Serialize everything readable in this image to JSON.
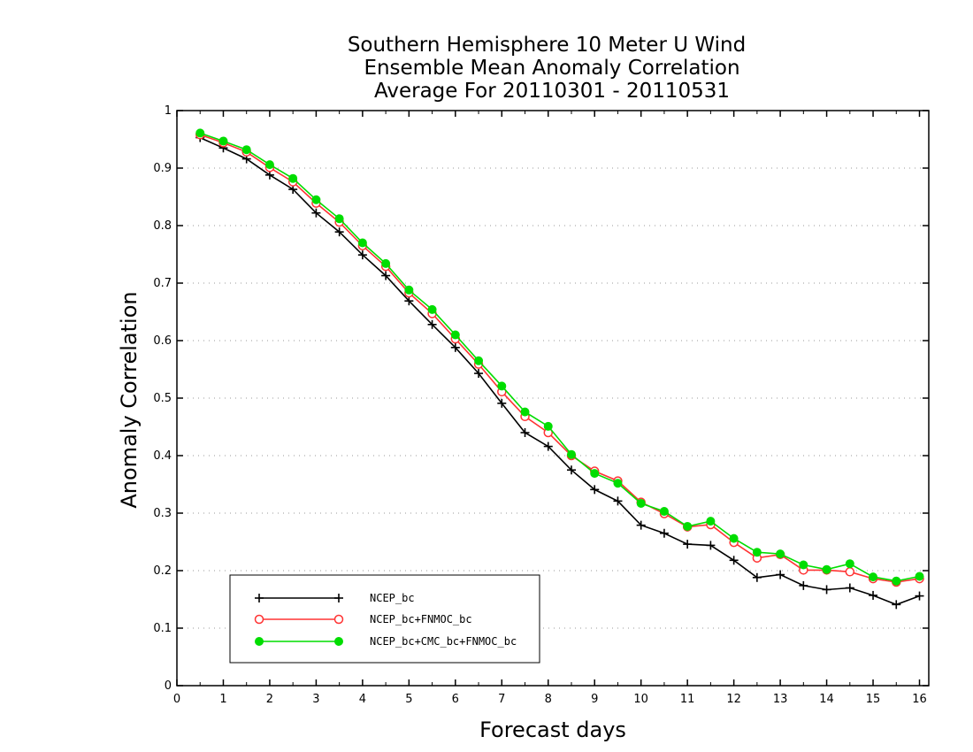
{
  "chart_data": {
    "type": "line",
    "title_lines": [
      "Southern Hemisphere 10 Meter U Wind",
      "Ensemble Mean Anomaly Correlation",
      "Average For 20110301 - 20110531"
    ],
    "xlabel": "Forecast days",
    "ylabel": "Anomaly Correlation",
    "xlim": [
      0,
      16.2
    ],
    "ylim": [
      0,
      1
    ],
    "xticks": [
      "0",
      "1",
      "2",
      "3",
      "4",
      "5",
      "6",
      "7",
      "8",
      "9",
      "10",
      "11",
      "12",
      "13",
      "14",
      "15",
      "16"
    ],
    "yticks": [
      "0",
      "0.1",
      "0.2",
      "0.3",
      "0.4",
      "0.5",
      "0.6",
      "0.7",
      "0.8",
      "0.9",
      "1"
    ],
    "grid": "horizontal-dotted",
    "legend_position": "bottom-left",
    "x": [
      0.5,
      1,
      1.5,
      2,
      2.5,
      3,
      3.5,
      4,
      4.5,
      5,
      5.5,
      6,
      6.5,
      7,
      7.5,
      8,
      8.5,
      9,
      9.5,
      10,
      10.5,
      11,
      11.5,
      12,
      12.5,
      13,
      13.5,
      14,
      14.5,
      15,
      15.5,
      16
    ],
    "series": [
      {
        "name": "NCEP_bc",
        "color": "#000000",
        "marker": "plus",
        "values": [
          0.953,
          0.935,
          0.916,
          0.888,
          0.863,
          0.822,
          0.789,
          0.749,
          0.713,
          0.669,
          0.628,
          0.588,
          0.543,
          0.491,
          0.44,
          0.416,
          0.375,
          0.341,
          0.321,
          0.279,
          0.265,
          0.246,
          0.244,
          0.218,
          0.188,
          0.193,
          0.174,
          0.167,
          0.17,
          0.157,
          0.141,
          0.156
        ]
      },
      {
        "name": "NCEP_bc+FNMOC_bc",
        "color": "#ff3333",
        "marker": "open-circle",
        "values": [
          0.958,
          0.944,
          0.928,
          0.901,
          0.876,
          0.839,
          0.806,
          0.765,
          0.729,
          0.683,
          0.647,
          0.603,
          0.559,
          0.511,
          0.468,
          0.44,
          0.4,
          0.373,
          0.356,
          0.319,
          0.299,
          0.276,
          0.28,
          0.249,
          0.222,
          0.228,
          0.201,
          0.201,
          0.198,
          0.186,
          0.18,
          0.186
        ]
      },
      {
        "name": "NCEP_bc+CMC_bc+FNMOC_bc",
        "color": "#00dd00",
        "marker": "filled-circle",
        "values": [
          0.961,
          0.947,
          0.932,
          0.906,
          0.882,
          0.845,
          0.812,
          0.77,
          0.734,
          0.688,
          0.654,
          0.61,
          0.565,
          0.521,
          0.476,
          0.451,
          0.402,
          0.369,
          0.352,
          0.317,
          0.303,
          0.277,
          0.286,
          0.256,
          0.232,
          0.229,
          0.21,
          0.202,
          0.212,
          0.189,
          0.182,
          0.19
        ]
      }
    ]
  }
}
